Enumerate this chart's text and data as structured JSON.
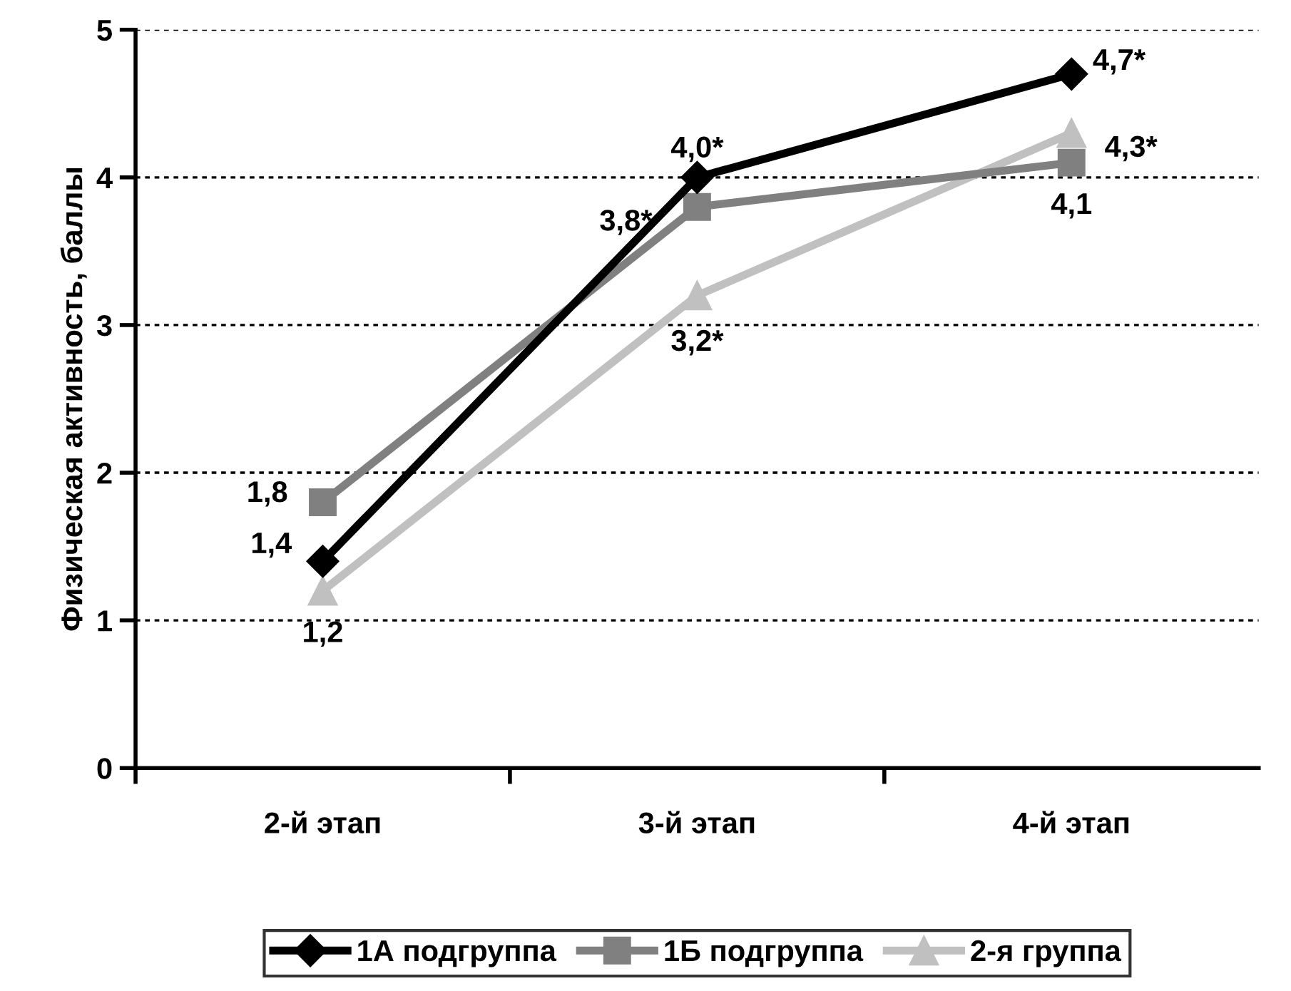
{
  "chart_data": {
    "type": "line",
    "ylabel": "Физическая активность, баллы",
    "categories": [
      "2-й этап",
      "3-й этап",
      "4-й этап"
    ],
    "series": [
      {
        "name": "1А подгруппа",
        "color": "#000000",
        "marker": "diamond",
        "values": [
          1.4,
          4.0,
          4.7
        ],
        "value_labels": [
          "1,4",
          "4,0*",
          "4,7*"
        ]
      },
      {
        "name": "1Б подгруппа",
        "color": "#808080",
        "marker": "square",
        "values": [
          1.8,
          3.8,
          4.1
        ],
        "value_labels": [
          "1,8",
          "3,8*",
          "4,1"
        ]
      },
      {
        "name": "2-я группа",
        "color": "#c0c0c0",
        "marker": "triangle",
        "values": [
          1.2,
          3.2,
          4.3
        ],
        "value_labels": [
          "1,2",
          "3,2*",
          "4,3*"
        ]
      }
    ],
    "ylim": [
      0,
      5
    ],
    "yticks": [
      0,
      1,
      2,
      3,
      4,
      5
    ],
    "grid": "y",
    "legend": "bottom",
    "line_style": "solid"
  }
}
